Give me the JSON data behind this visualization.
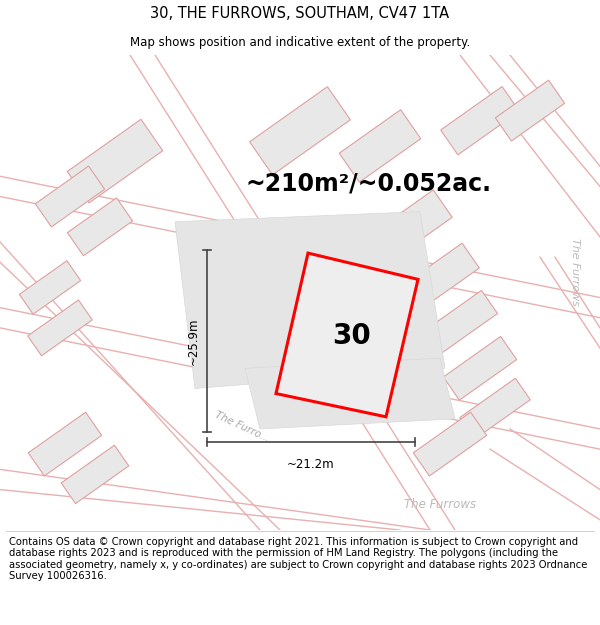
{
  "title": "30, THE FURROWS, SOUTHAM, CV47 1TA",
  "subtitle": "Map shows position and indicative extent of the property.",
  "area_text": "~210m²/~0.052ac.",
  "number_label": "30",
  "dim_vertical": "~25.9m",
  "dim_horizontal": "~21.2m",
  "footer_text": "Contains OS data © Crown copyright and database right 2021. This information is subject to Crown copyright and database rights 2023 and is reproduced with the permission of HM Land Registry. The polygons (including the associated geometry, namely x, y co-ordinates) are subject to Crown copyright and database rights 2023 Ordnance Survey 100026316.",
  "bg_color": "#f0f0f0",
  "map_bg": "#f5f5f5",
  "road_line_color": "#e8b0b0",
  "building_fill": "#e8e8e8",
  "building_edge": "#e0a0a0",
  "plot_edge": "#ff0000",
  "plot_fill": "#eeeeee",
  "plot_bg_fill": "#e5e5e5",
  "plot_bg_edge": "#d8d8d8",
  "dim_color": "#444444",
  "road_label_color": "#aaaaaa",
  "title_fontsize": 10.5,
  "subtitle_fontsize": 8.5,
  "area_fontsize": 17,
  "number_fontsize": 20,
  "footer_fontsize": 7.2,
  "road_lw": 1.0,
  "building_lw": 0.8,
  "plot_lw": 2.2
}
